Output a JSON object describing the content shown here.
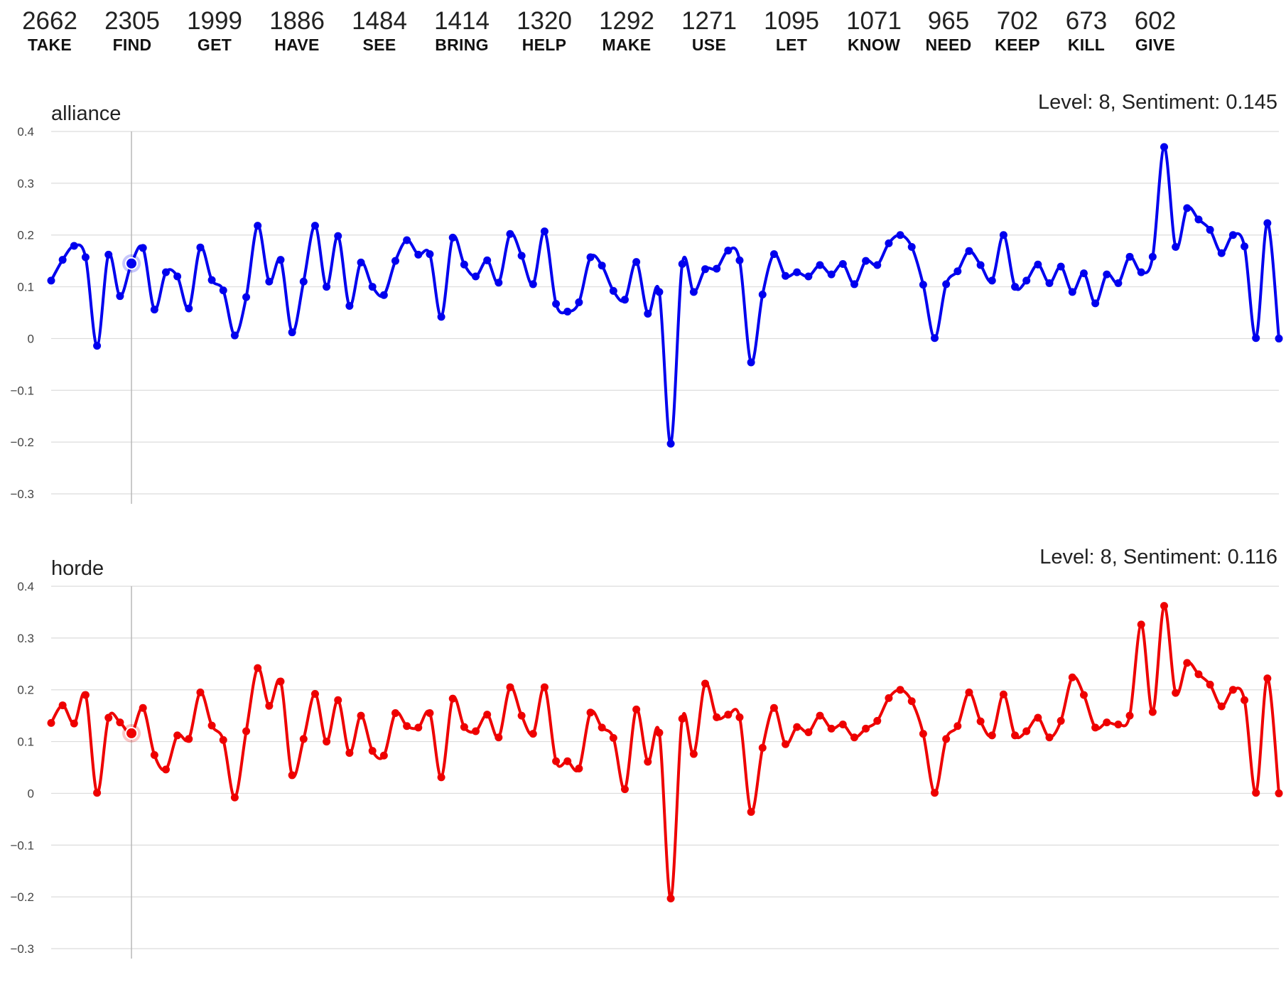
{
  "top_verbs": [
    {
      "count": "2662",
      "verb": "TAKE"
    },
    {
      "count": "2305",
      "verb": "FIND"
    },
    {
      "count": "1999",
      "verb": "GET"
    },
    {
      "count": "1886",
      "verb": "HAVE"
    },
    {
      "count": "1484",
      "verb": "SEE"
    },
    {
      "count": "1414",
      "verb": "BRING"
    },
    {
      "count": "1320",
      "verb": "HELP"
    },
    {
      "count": "1292",
      "verb": "MAKE"
    },
    {
      "count": "1271",
      "verb": "USE"
    },
    {
      "count": "1095",
      "verb": "LET"
    },
    {
      "count": "1071",
      "verb": "KNOW"
    },
    {
      "count": "965",
      "verb": "NEED"
    },
    {
      "count": "702",
      "verb": "KEEP"
    },
    {
      "count": "673",
      "verb": "KILL"
    },
    {
      "count": "602",
      "verb": "GIVE"
    }
  ],
  "charts": {
    "alliance": {
      "title": "alliance",
      "status": "Level: 8, Sentiment: 0.145"
    },
    "horde": {
      "title": "horde",
      "status": "Level: 8, Sentiment: 0.116"
    }
  },
  "chart_data": [
    {
      "type": "line",
      "title": "alliance",
      "color": "#0000ee",
      "x_start": 1,
      "xlim": [
        1,
        108
      ],
      "ylim": [
        -0.3,
        0.4
      ],
      "yticks": [
        0.4,
        0.3,
        0.2,
        0.1,
        0,
        -0.1,
        -0.2,
        -0.3
      ],
      "ytick_labels": [
        "0.4",
        "0.3",
        "0.2",
        "0.1",
        "0",
        "−0.1",
        "−0.2",
        "−0.3"
      ],
      "xticks": [
        10,
        20,
        30,
        40,
        50,
        60,
        70,
        80,
        90,
        100
      ],
      "highlight_x": 8,
      "highlight_value": 0.145,
      "values": [
        0.112,
        0.152,
        0.179,
        0.157,
        -0.014,
        0.162,
        0.082,
        0.145,
        0.175,
        0.056,
        0.128,
        0.12,
        0.058,
        0.176,
        0.113,
        0.093,
        0.006,
        0.08,
        0.218,
        0.11,
        0.152,
        0.012,
        0.11,
        0.218,
        0.1,
        0.198,
        0.063,
        0.147,
        0.1,
        0.084,
        0.15,
        0.19,
        0.162,
        0.163,
        0.042,
        0.195,
        0.143,
        0.12,
        0.151,
        0.108,
        0.202,
        0.16,
        0.105,
        0.207,
        0.067,
        0.052,
        0.07,
        0.157,
        0.141,
        0.092,
        0.075,
        0.148,
        0.048,
        0.09,
        -0.203,
        0.144,
        0.09,
        0.134,
        0.135,
        0.17,
        0.151,
        -0.046,
        0.085,
        0.163,
        0.121,
        0.128,
        0.12,
        0.142,
        0.124,
        0.144,
        0.105,
        0.15,
        0.142,
        0.184,
        0.2,
        0.177,
        0.104,
        0.001,
        0.105,
        0.13,
        0.169,
        0.142,
        0.112,
        0.2,
        0.1,
        0.112,
        0.143,
        0.107,
        0.139,
        0.09,
        0.126,
        0.068,
        0.124,
        0.107,
        0.158,
        0.128,
        0.158,
        0.37,
        0.177,
        0.252,
        0.23,
        0.21,
        0.165,
        0.2,
        0.178,
        0.001,
        0.223,
        0.0
      ]
    },
    {
      "type": "line",
      "title": "horde",
      "color": "#ee0000",
      "x_start": 1,
      "xlim": [
        1,
        108
      ],
      "ylim": [
        -0.3,
        0.4
      ],
      "yticks": [
        0.4,
        0.3,
        0.2,
        0.1,
        0,
        -0.1,
        -0.2,
        -0.3
      ],
      "ytick_labels": [
        "0.4",
        "0.3",
        "0.2",
        "0.1",
        "0",
        "−0.1",
        "−0.2",
        "−0.3"
      ],
      "xticks": [
        10,
        20,
        30,
        40,
        50,
        60,
        70,
        80,
        90,
        100
      ],
      "highlight_x": 8,
      "highlight_value": 0.116,
      "values": [
        0.136,
        0.17,
        0.135,
        0.19,
        0.001,
        0.146,
        0.137,
        0.116,
        0.165,
        0.074,
        0.046,
        0.112,
        0.105,
        0.195,
        0.131,
        0.103,
        -0.008,
        0.12,
        0.242,
        0.169,
        0.216,
        0.035,
        0.105,
        0.192,
        0.1,
        0.18,
        0.078,
        0.15,
        0.082,
        0.073,
        0.155,
        0.13,
        0.127,
        0.155,
        0.031,
        0.183,
        0.128,
        0.12,
        0.152,
        0.108,
        0.205,
        0.15,
        0.115,
        0.205,
        0.062,
        0.062,
        0.048,
        0.156,
        0.127,
        0.107,
        0.008,
        0.162,
        0.061,
        0.117,
        -0.203,
        0.144,
        0.076,
        0.212,
        0.147,
        0.152,
        0.147,
        -0.036,
        0.088,
        0.165,
        0.095,
        0.128,
        0.118,
        0.15,
        0.125,
        0.133,
        0.108,
        0.125,
        0.14,
        0.184,
        0.2,
        0.178,
        0.115,
        0.001,
        0.105,
        0.13,
        0.195,
        0.139,
        0.112,
        0.191,
        0.112,
        0.12,
        0.146,
        0.108,
        0.14,
        0.224,
        0.19,
        0.127,
        0.137,
        0.133,
        0.15,
        0.326,
        0.157,
        0.362,
        0.194,
        0.252,
        0.23,
        0.21,
        0.168,
        0.2,
        0.18,
        0.001,
        0.222,
        0.0
      ]
    }
  ]
}
